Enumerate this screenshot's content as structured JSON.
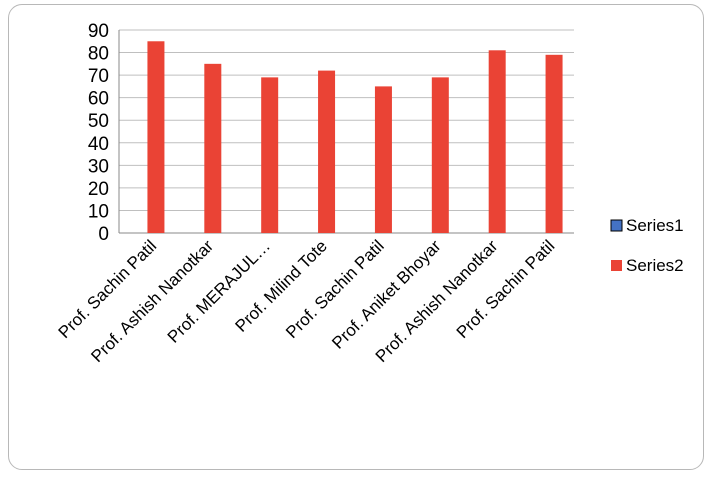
{
  "chart_data": {
    "type": "bar",
    "categories": [
      "Prof. Sachin Patil",
      "Prof. Ashish Nanotkar",
      "Prof. MERAJUL…",
      "Prof. Milind Tote",
      "Prof. Sachin Patil",
      "Prof. Aniket Bhoyar",
      "Prof. Ashish Nanotkar",
      "Prof. Sachin Patil"
    ],
    "series": [
      {
        "name": "Series1",
        "values": [
          0,
          0,
          0,
          0,
          0,
          0,
          0,
          0
        ],
        "color": "#4472C4"
      },
      {
        "name": "Series2",
        "values": [
          85,
          75,
          69,
          72,
          65,
          69,
          81,
          79
        ],
        "color": "#EA4335"
      }
    ],
    "ylim": [
      0,
      90
    ],
    "yticks": [
      0,
      10,
      20,
      30,
      40,
      50,
      60,
      70,
      80,
      90
    ],
    "grid": true,
    "legend_position": "right"
  }
}
